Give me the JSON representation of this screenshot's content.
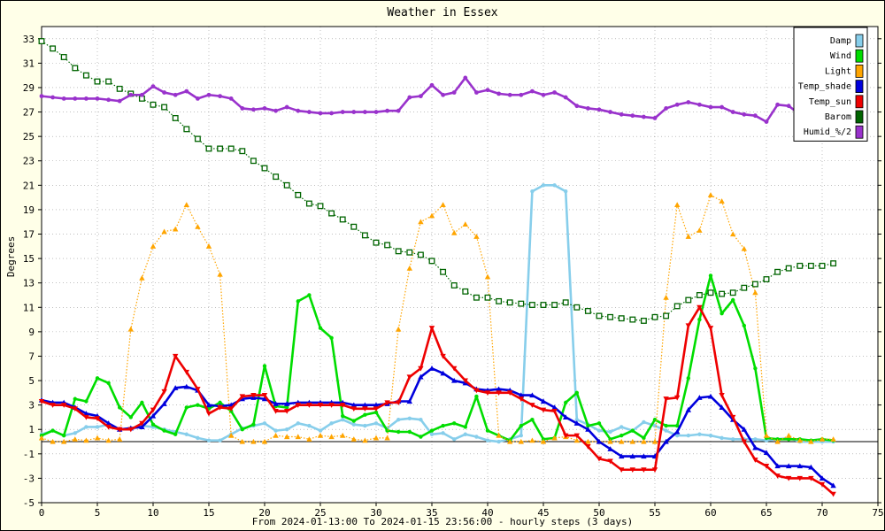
{
  "chart_data": {
    "type": "line",
    "title": "Weather in Essex",
    "xlabel": "From 2024-01-13:00 To 2024-01-15 23:56:00 - hourly steps (3 days)",
    "ylabel": "Degrees",
    "xlim": [
      0,
      75
    ],
    "ylim": [
      -5,
      34
    ],
    "x_ticks": [
      0,
      5,
      10,
      15,
      20,
      25,
      30,
      35,
      40,
      45,
      50,
      55,
      60,
      65,
      70,
      75
    ],
    "y_ticks": [
      -5,
      -3,
      -1,
      1,
      3,
      5,
      7,
      9,
      11,
      13,
      15,
      17,
      19,
      21,
      23,
      25,
      27,
      29,
      31,
      33
    ],
    "grid": true,
    "zero_line": true,
    "legend_position": "top-right",
    "series": [
      {
        "name": "Damp",
        "color": "#87ceeb",
        "marker": "circle",
        "dash": false,
        "values": [
          0.6,
          0.9,
          0.5,
          0.7,
          1.2,
          1.2,
          1.4,
          1.0,
          1.1,
          1.3,
          1.2,
          1.0,
          0.8,
          0.6,
          0.3,
          0.1,
          0.1,
          0.6,
          1.1,
          1.3,
          1.5,
          0.9,
          1.0,
          1.5,
          1.3,
          0.9,
          1.5,
          1.8,
          1.4,
          1.3,
          1.5,
          1.1,
          1.8,
          1.9,
          1.8,
          0.6,
          0.7,
          0.2,
          0.6,
          0.4,
          0.1,
          0.0,
          0.2,
          0.5,
          20.5,
          21.0,
          21.0,
          20.5,
          1.8,
          1.4,
          0.9,
          0.8,
          1.2,
          0.9,
          1.6,
          1.3,
          0.9,
          0.5,
          0.5,
          0.6,
          0.5,
          0.3,
          0.2,
          0.2,
          0.2,
          0.1,
          0.2,
          0.3,
          0.0,
          0.0,
          0.0,
          0.0
        ]
      },
      {
        "name": "Wind",
        "color": "#00dd00",
        "marker": "circle",
        "dash": false,
        "values": [
          0.5,
          0.9,
          0.5,
          3.5,
          3.3,
          5.2,
          4.8,
          2.8,
          2.0,
          3.2,
          1.4,
          0.9,
          0.6,
          2.8,
          3.0,
          2.7,
          3.2,
          2.5,
          1.0,
          1.4,
          6.2,
          2.9,
          2.8,
          11.5,
          12.0,
          9.3,
          8.5,
          2.1,
          1.7,
          2.2,
          2.4,
          0.9,
          0.8,
          0.8,
          0.4,
          0.9,
          1.3,
          1.5,
          1.2,
          3.7,
          0.9,
          0.5,
          0.1,
          1.3,
          1.8,
          0.2,
          0.3,
          3.2,
          4.0,
          1.3,
          1.5,
          0.2,
          0.5,
          0.9,
          0.3,
          1.8,
          1.3,
          1.3,
          5.2,
          10.0,
          13.6,
          10.5,
          11.6,
          9.5,
          6.0,
          0.3,
          0.2,
          0.2,
          0.2,
          0.1,
          0.2,
          0.1
        ]
      },
      {
        "name": "Light",
        "color": "#ffa500",
        "marker": "triangle",
        "dash": true,
        "values": [
          0.3,
          0.0,
          0.0,
          0.2,
          0.1,
          0.3,
          0.1,
          0.2,
          9.2,
          13.4,
          16.0,
          17.2,
          17.4,
          19.4,
          17.6,
          16.0,
          13.7,
          0.5,
          0.0,
          0.0,
          0.0,
          0.5,
          0.4,
          0.4,
          0.2,
          0.5,
          0.4,
          0.5,
          0.2,
          0.1,
          0.3,
          0.3,
          9.2,
          14.2,
          18.0,
          18.5,
          19.4,
          17.1,
          17.8,
          16.8,
          13.5,
          0.5,
          0.0,
          0.0,
          0.1,
          0.0,
          0.3,
          0.4,
          0.1,
          0.0,
          0.0,
          0.0,
          0.0,
          0.0,
          0.0,
          0.0,
          11.8,
          19.4,
          16.8,
          17.3,
          20.2,
          19.7,
          17.0,
          15.8,
          12.2,
          0.5,
          0.0,
          0.5,
          0.1,
          0.0,
          0.2,
          0.2
        ]
      },
      {
        "name": "Temp_shade",
        "color": "#0000dd",
        "marker": "triangle",
        "dash": false,
        "values": [
          3.4,
          3.2,
          3.2,
          2.8,
          2.3,
          2.1,
          1.5,
          1.0,
          1.1,
          1.2,
          2.1,
          3.1,
          4.4,
          4.5,
          4.2,
          3.0,
          2.9,
          3.0,
          3.5,
          3.6,
          3.5,
          3.1,
          3.1,
          3.2,
          3.2,
          3.2,
          3.2,
          3.2,
          3.0,
          3.0,
          3.0,
          3.1,
          3.3,
          3.3,
          5.3,
          6.0,
          5.6,
          5.0,
          4.8,
          4.3,
          4.2,
          4.3,
          4.2,
          3.8,
          3.8,
          3.3,
          2.8,
          2.0,
          1.5,
          1.0,
          0.0,
          -0.6,
          -1.2,
          -1.2,
          -1.2,
          -1.2,
          0.0,
          0.8,
          2.6,
          3.6,
          3.7,
          2.8,
          1.8,
          1.0,
          -0.5,
          -0.9,
          -2.0,
          -2.0,
          -2.0,
          -2.1,
          -3.0,
          -3.6
        ]
      },
      {
        "name": "Temp_sun",
        "color": "#ee0000",
        "marker": "triangle-down",
        "dash": false,
        "values": [
          3.3,
          3.0,
          3.0,
          2.7,
          2.0,
          1.9,
          1.2,
          1.0,
          1.0,
          1.5,
          2.6,
          4.1,
          7.0,
          5.7,
          4.3,
          2.3,
          2.8,
          2.7,
          3.7,
          3.8,
          3.8,
          2.5,
          2.5,
          3.0,
          3.0,
          3.0,
          3.0,
          3.0,
          2.7,
          2.7,
          2.7,
          3.2,
          3.2,
          5.3,
          6.0,
          9.3,
          7.0,
          6.0,
          5.0,
          4.2,
          4.0,
          4.0,
          4.0,
          3.5,
          3.0,
          2.6,
          2.5,
          0.5,
          0.5,
          -0.4,
          -1.4,
          -1.6,
          -2.3,
          -2.3,
          -2.3,
          -2.3,
          3.5,
          3.6,
          9.5,
          11.0,
          9.3,
          3.8,
          2.0,
          0.0,
          -1.5,
          -2.0,
          -2.8,
          -3.0,
          -3.0,
          -3.0,
          -3.5,
          -4.3
        ]
      },
      {
        "name": "Barom",
        "color": "#006400",
        "marker": "square",
        "dash": true,
        "values": [
          32.8,
          32.2,
          31.5,
          30.6,
          30.0,
          29.5,
          29.5,
          28.9,
          28.5,
          28.1,
          27.6,
          27.4,
          26.5,
          25.6,
          24.8,
          24.0,
          24.0,
          24.0,
          23.8,
          23.0,
          22.4,
          21.7,
          21.0,
          20.2,
          19.5,
          19.3,
          18.7,
          18.2,
          17.6,
          16.9,
          16.3,
          16.1,
          15.6,
          15.5,
          15.3,
          14.8,
          13.9,
          12.8,
          12.3,
          11.8,
          11.8,
          11.5,
          11.4,
          11.3,
          11.2,
          11.2,
          11.2,
          11.4,
          11.0,
          10.7,
          10.3,
          10.2,
          10.1,
          10.0,
          9.9,
          10.2,
          10.3,
          11.1,
          11.6,
          12.0,
          12.2,
          12.1,
          12.2,
          12.6,
          12.9,
          13.3,
          13.9,
          14.2,
          14.4,
          14.4,
          14.4,
          14.6
        ]
      },
      {
        "name": "Humid_%/2",
        "color": "#9932cc",
        "marker": "star",
        "dash": false,
        "values": [
          28.3,
          28.2,
          28.1,
          28.1,
          28.1,
          28.1,
          28.0,
          27.9,
          28.4,
          28.4,
          29.1,
          28.6,
          28.4,
          28.7,
          28.1,
          28.4,
          28.3,
          28.1,
          27.3,
          27.2,
          27.3,
          27.1,
          27.4,
          27.1,
          27.0,
          26.9,
          26.9,
          27.0,
          27.0,
          27.0,
          27.0,
          27.1,
          27.1,
          28.2,
          28.3,
          29.2,
          28.4,
          28.6,
          29.8,
          28.6,
          28.8,
          28.5,
          28.4,
          28.4,
          28.7,
          28.4,
          28.6,
          28.2,
          27.5,
          27.3,
          27.2,
          27.0,
          26.8,
          26.7,
          26.6,
          26.5,
          27.3,
          27.6,
          27.8,
          27.6,
          27.4,
          27.4,
          27.0,
          26.8,
          26.7,
          26.2,
          27.6,
          27.5,
          26.8,
          26.5,
          26.2,
          26.0
        ]
      }
    ]
  }
}
